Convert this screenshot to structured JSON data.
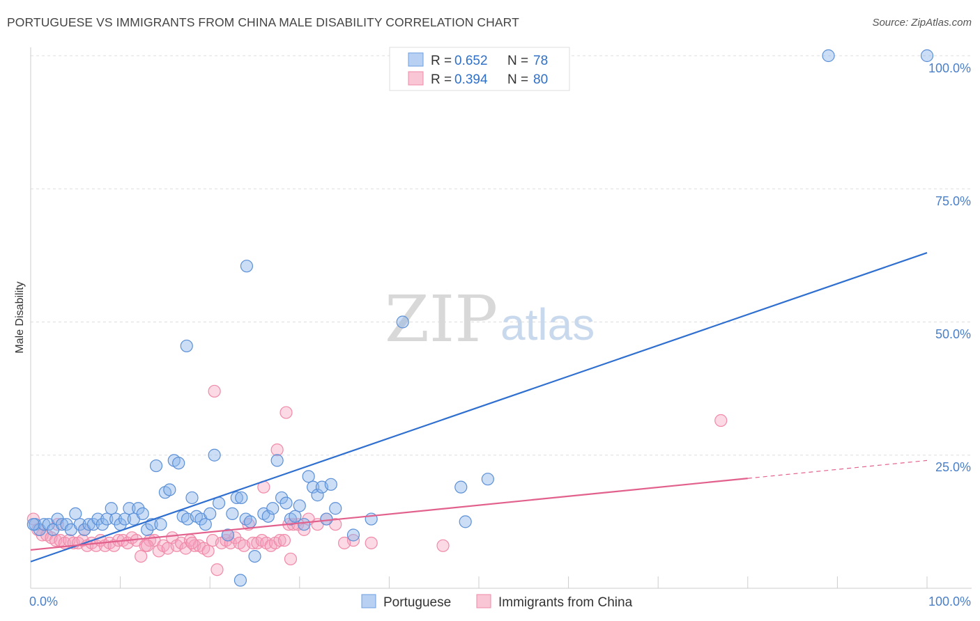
{
  "header": {
    "title": "PORTUGUESE VS IMMIGRANTS FROM CHINA MALE DISABILITY CORRELATION CHART",
    "source": "Source: ZipAtlas.com"
  },
  "watermark": {
    "zip": "ZIP",
    "atlas": "atlas"
  },
  "legend": {
    "r_label": "R =",
    "n_label": "N =",
    "rows": [
      {
        "r": "0.652",
        "n": "78",
        "color": "#6d9fe0"
      },
      {
        "r": "0.394",
        "n": "80",
        "color": "#f08aa8"
      }
    ]
  },
  "bottom_legend": [
    "Portuguese",
    "Immigrants from China"
  ],
  "chart_data": {
    "type": "scatter",
    "title": "PORTUGUESE VS IMMIGRANTS FROM CHINA MALE DISABILITY CORRELATION CHART",
    "xlabel": "",
    "ylabel": "Male Disability",
    "xlim": [
      0,
      100
    ],
    "ylim": [
      0,
      100
    ],
    "x_tick_labels": [
      "0.0%",
      "100.0%"
    ],
    "y_tick_labels": [
      "100.0%",
      "75.0%",
      "50.0%",
      "25.0%"
    ],
    "y_tick_values": [
      100,
      75,
      50,
      25
    ],
    "series": [
      {
        "name": "Portuguese",
        "color": "#5b8fd6",
        "line_color": "#2f6fcf",
        "trend": {
          "x": [
            0,
            100
          ],
          "y": [
            5.0,
            63.0
          ],
          "dashed_from": null
        },
        "points": [
          [
            0.5,
            12
          ],
          [
            1.0,
            11
          ],
          [
            1.5,
            12
          ],
          [
            2.0,
            12
          ],
          [
            2.5,
            11
          ],
          [
            3.0,
            13
          ],
          [
            3.5,
            12
          ],
          [
            4.0,
            12
          ],
          [
            4.5,
            11
          ],
          [
            5.0,
            14
          ],
          [
            5.5,
            12
          ],
          [
            6.0,
            11
          ],
          [
            6.5,
            12
          ],
          [
            7.0,
            12
          ],
          [
            7.5,
            13
          ],
          [
            8.0,
            12
          ],
          [
            8.5,
            13
          ],
          [
            9.0,
            15
          ],
          [
            9.5,
            13
          ],
          [
            10.0,
            12
          ],
          [
            10.5,
            13
          ],
          [
            11.0,
            15
          ],
          [
            11.5,
            13
          ],
          [
            12.0,
            15
          ],
          [
            12.5,
            14
          ],
          [
            13.0,
            11
          ],
          [
            13.5,
            12
          ],
          [
            14.0,
            23
          ],
          [
            14.5,
            12
          ],
          [
            15.0,
            18
          ],
          [
            15.5,
            18.5
          ],
          [
            16.0,
            24
          ],
          [
            16.5,
            23.5
          ],
          [
            17.0,
            13.5
          ],
          [
            17.5,
            13
          ],
          [
            18.0,
            17
          ],
          [
            18.5,
            13.5
          ],
          [
            19.0,
            13
          ],
          [
            19.5,
            12
          ],
          [
            20.0,
            14
          ],
          [
            20.5,
            25
          ],
          [
            21.0,
            16
          ],
          [
            22.0,
            10
          ],
          [
            22.5,
            14
          ],
          [
            23.0,
            17
          ],
          [
            23.5,
            17
          ],
          [
            24.0,
            13
          ],
          [
            24.5,
            12.5
          ],
          [
            25.0,
            6
          ],
          [
            26.0,
            14
          ],
          [
            26.5,
            13.5
          ],
          [
            27.0,
            15
          ],
          [
            27.5,
            24
          ],
          [
            28.0,
            17
          ],
          [
            28.5,
            16
          ],
          [
            29.0,
            13
          ],
          [
            29.5,
            13.5
          ],
          [
            30.0,
            15.5
          ],
          [
            30.5,
            12
          ],
          [
            31.0,
            21
          ],
          [
            31.5,
            19
          ],
          [
            32.0,
            17.5
          ],
          [
            32.5,
            19
          ],
          [
            33.0,
            13
          ],
          [
            33.5,
            19.5
          ],
          [
            34.0,
            15
          ],
          [
            36.0,
            10
          ],
          [
            38.0,
            13
          ],
          [
            41.5,
            50
          ],
          [
            48.0,
            19
          ],
          [
            48.5,
            12.5
          ],
          [
            51.0,
            20.5
          ],
          [
            17.4,
            45.5
          ],
          [
            24.1,
            60.5
          ],
          [
            23.4,
            1.5
          ],
          [
            89.0,
            100
          ],
          [
            100.0,
            100
          ],
          [
            0.3,
            12
          ]
        ]
      },
      {
        "name": "Immigrants from China",
        "color": "#f08aa8",
        "line_color": "#e2608c",
        "trend": {
          "x": [
            0,
            100
          ],
          "y": [
            7.2,
            24.0
          ],
          "dashed_from": 80
        },
        "points": [
          [
            0.3,
            13
          ],
          [
            0.8,
            11
          ],
          [
            1.3,
            10
          ],
          [
            1.8,
            10
          ],
          [
            2.3,
            9.5
          ],
          [
            2.8,
            9
          ],
          [
            3.3,
            9
          ],
          [
            3.8,
            8.5
          ],
          [
            4.3,
            9
          ],
          [
            4.8,
            8.5
          ],
          [
            5.3,
            8.5
          ],
          [
            5.8,
            9
          ],
          [
            6.3,
            8
          ],
          [
            6.8,
            8.5
          ],
          [
            7.3,
            8
          ],
          [
            7.8,
            9
          ],
          [
            8.3,
            8
          ],
          [
            8.8,
            8.5
          ],
          [
            9.3,
            8
          ],
          [
            9.8,
            9
          ],
          [
            10.3,
            9
          ],
          [
            10.8,
            8.5
          ],
          [
            11.3,
            9.5
          ],
          [
            11.8,
            9
          ],
          [
            12.3,
            6
          ],
          [
            12.8,
            8
          ],
          [
            13.3,
            9
          ],
          [
            13.8,
            9
          ],
          [
            14.3,
            7
          ],
          [
            14.8,
            8
          ],
          [
            15.3,
            7.5
          ],
          [
            15.8,
            9.5
          ],
          [
            16.3,
            8
          ],
          [
            16.8,
            8.5
          ],
          [
            17.3,
            7.5
          ],
          [
            17.8,
            9
          ],
          [
            18.3,
            8
          ],
          [
            18.8,
            8
          ],
          [
            19.3,
            7.5
          ],
          [
            19.8,
            7
          ],
          [
            20.3,
            9
          ],
          [
            20.8,
            3.5
          ],
          [
            21.3,
            8.5
          ],
          [
            21.8,
            9
          ],
          [
            22.3,
            8.5
          ],
          [
            22.8,
            9.5
          ],
          [
            23.3,
            8.5
          ],
          [
            23.8,
            8
          ],
          [
            24.3,
            12
          ],
          [
            24.8,
            8.5
          ],
          [
            25.3,
            8.5
          ],
          [
            25.8,
            9
          ],
          [
            26.3,
            8.5
          ],
          [
            26.8,
            8
          ],
          [
            27.3,
            8.5
          ],
          [
            27.8,
            9
          ],
          [
            28.3,
            9
          ],
          [
            28.8,
            12
          ],
          [
            29.3,
            12
          ],
          [
            29.8,
            12
          ],
          [
            30.5,
            11
          ],
          [
            31.0,
            13
          ],
          [
            32.0,
            12
          ],
          [
            33.0,
            13
          ],
          [
            34.0,
            12
          ],
          [
            36.0,
            9
          ],
          [
            20.5,
            37
          ],
          [
            22.0,
            10
          ],
          [
            26.0,
            19
          ],
          [
            27.5,
            26
          ],
          [
            28.5,
            33
          ],
          [
            35.0,
            8.5
          ],
          [
            38.0,
            8.5
          ],
          [
            46.0,
            8
          ],
          [
            77.0,
            31.5
          ],
          [
            3.0,
            12
          ],
          [
            6.0,
            11
          ],
          [
            13.0,
            8
          ],
          [
            18.0,
            8.5
          ],
          [
            29.0,
            5.5
          ]
        ]
      }
    ]
  }
}
